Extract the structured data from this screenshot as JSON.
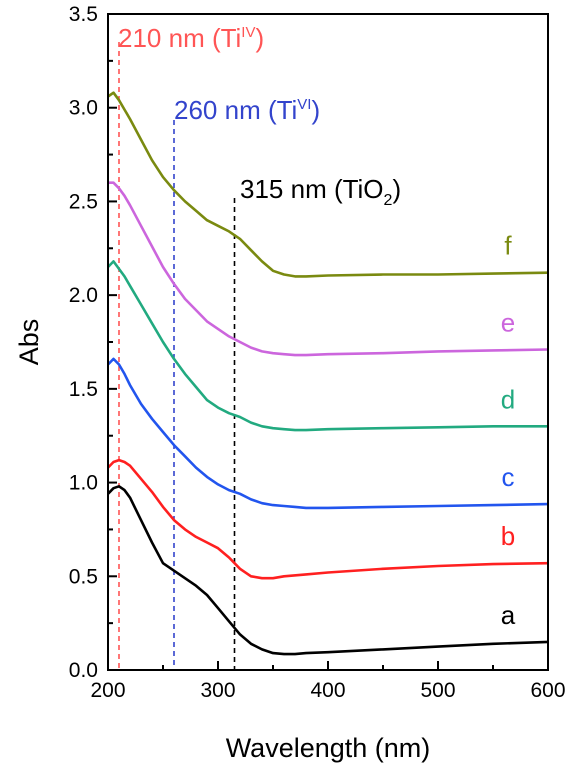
{
  "chart_data": {
    "type": "line",
    "xlabel": "Wavelength (nm)",
    "ylabel": "Abs",
    "xlim": [
      200,
      600
    ],
    "ylim": [
      0.0,
      3.5
    ],
    "xticks": [
      "200",
      "300",
      "400",
      "500",
      "600"
    ],
    "yticks": [
      "0.0",
      "0.5",
      "1.0",
      "1.5",
      "2.0",
      "2.5",
      "3.0",
      "3.5"
    ],
    "grid": false,
    "legend": "curve labels at right end",
    "series": [
      {
        "name": "a",
        "color": "#000000",
        "x": [
          200,
          205,
          210,
          215,
          220,
          230,
          240,
          250,
          260,
          270,
          280,
          290,
          300,
          310,
          320,
          330,
          340,
          350,
          360,
          370,
          380,
          400,
          450,
          500,
          550,
          600
        ],
        "y": [
          0.94,
          0.97,
          0.98,
          0.96,
          0.92,
          0.8,
          0.68,
          0.57,
          0.53,
          0.49,
          0.45,
          0.4,
          0.33,
          0.26,
          0.19,
          0.14,
          0.11,
          0.09,
          0.085,
          0.085,
          0.09,
          0.095,
          0.11,
          0.125,
          0.14,
          0.15
        ]
      },
      {
        "name": "b",
        "color": "#ff2020",
        "x": [
          200,
          205,
          210,
          215,
          220,
          230,
          240,
          250,
          260,
          270,
          280,
          290,
          300,
          310,
          320,
          330,
          340,
          350,
          360,
          380,
          400,
          450,
          500,
          550,
          600
        ],
        "y": [
          1.08,
          1.11,
          1.12,
          1.11,
          1.09,
          1.02,
          0.95,
          0.87,
          0.8,
          0.75,
          0.71,
          0.68,
          0.65,
          0.6,
          0.54,
          0.5,
          0.49,
          0.49,
          0.5,
          0.51,
          0.52,
          0.54,
          0.555,
          0.565,
          0.57
        ]
      },
      {
        "name": "c",
        "color": "#2255ee",
        "x": [
          200,
          205,
          210,
          215,
          220,
          230,
          240,
          250,
          260,
          270,
          280,
          290,
          300,
          310,
          320,
          330,
          340,
          350,
          360,
          370,
          380,
          400,
          450,
          500,
          550,
          600
        ],
        "y": [
          1.63,
          1.66,
          1.63,
          1.58,
          1.52,
          1.42,
          1.34,
          1.27,
          1.2,
          1.14,
          1.08,
          1.03,
          0.99,
          0.96,
          0.94,
          0.91,
          0.89,
          0.88,
          0.875,
          0.87,
          0.865,
          0.865,
          0.87,
          0.875,
          0.88,
          0.885
        ]
      },
      {
        "name": "d",
        "color": "#22aa80",
        "x": [
          200,
          205,
          210,
          215,
          220,
          230,
          240,
          250,
          260,
          270,
          280,
          290,
          300,
          310,
          320,
          330,
          340,
          350,
          360,
          370,
          380,
          400,
          450,
          500,
          550,
          600
        ],
        "y": [
          2.15,
          2.18,
          2.14,
          2.1,
          2.05,
          1.95,
          1.85,
          1.75,
          1.66,
          1.58,
          1.51,
          1.44,
          1.4,
          1.37,
          1.35,
          1.32,
          1.3,
          1.29,
          1.285,
          1.28,
          1.28,
          1.285,
          1.29,
          1.295,
          1.3,
          1.3
        ]
      },
      {
        "name": "e",
        "color": "#cc66dd",
        "x": [
          200,
          205,
          210,
          215,
          220,
          230,
          240,
          250,
          260,
          270,
          280,
          290,
          300,
          310,
          320,
          330,
          340,
          350,
          360,
          370,
          380,
          400,
          450,
          500,
          550,
          600
        ],
        "y": [
          2.6,
          2.6,
          2.57,
          2.53,
          2.48,
          2.37,
          2.26,
          2.15,
          2.06,
          1.98,
          1.92,
          1.86,
          1.82,
          1.78,
          1.75,
          1.72,
          1.7,
          1.69,
          1.685,
          1.68,
          1.68,
          1.685,
          1.69,
          1.7,
          1.705,
          1.71
        ]
      },
      {
        "name": "f",
        "color": "#7a8a10",
        "x": [
          200,
          205,
          210,
          215,
          220,
          230,
          240,
          250,
          260,
          270,
          280,
          290,
          300,
          310,
          320,
          330,
          340,
          350,
          360,
          370,
          380,
          400,
          450,
          500,
          550,
          600
        ],
        "y": [
          3.06,
          3.08,
          3.04,
          2.99,
          2.94,
          2.83,
          2.72,
          2.63,
          2.56,
          2.5,
          2.45,
          2.4,
          2.37,
          2.34,
          2.3,
          2.24,
          2.18,
          2.13,
          2.11,
          2.1,
          2.1,
          2.105,
          2.11,
          2.11,
          2.115,
          2.12
        ]
      }
    ],
    "reference_lines": [
      {
        "x": 210,
        "color": "#ff5555",
        "label_prefix": "210 nm (Ti",
        "label_sup": "IV",
        "label_suffix": ")"
      },
      {
        "x": 260,
        "color": "#3344cc",
        "label_prefix": "260 nm (Ti",
        "label_sup": "VI",
        "label_suffix": ")"
      },
      {
        "x": 315,
        "color": "#000000",
        "label_prefix": "315 nm (TiO",
        "label_sub": "2",
        "label_suffix": ")"
      }
    ]
  }
}
